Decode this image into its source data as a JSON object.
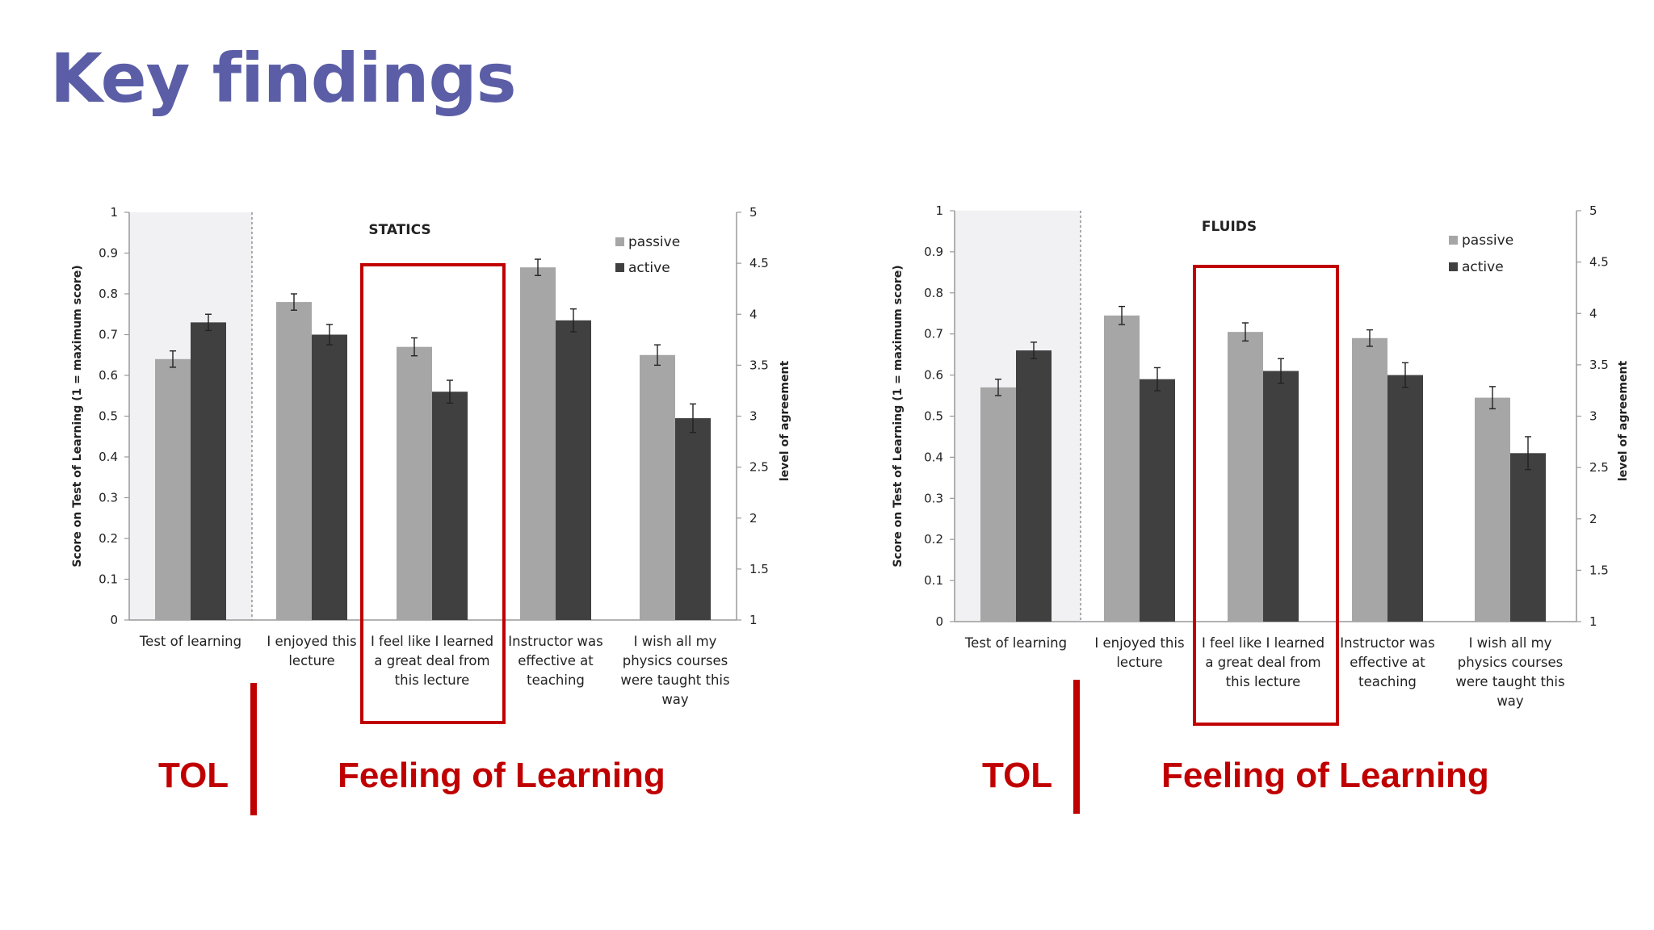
{
  "slide": {
    "title": "Key findings"
  },
  "captions": {
    "tol": "TOL",
    "feeling": "Feeling of Learning"
  },
  "colors": {
    "passive": "#a6a6a6",
    "active": "#404040",
    "highlight": "#c00000",
    "title": "#5b5ea6",
    "shade": "#f1f1f4"
  },
  "chart_data": [
    {
      "type": "bar",
      "title": "STATICS",
      "ylabel": "Score on Test of Learning  (1 = maximum score)",
      "y2label": "level of agreement",
      "ylim": [
        0,
        1
      ],
      "y2lim": [
        1,
        5
      ],
      "yticks": [
        "0",
        "0.1",
        "0.2",
        "0.3",
        "0.4",
        "0.5",
        "0.6",
        "0.7",
        "0.8",
        "0.9",
        "1"
      ],
      "y2ticks": [
        "1",
        "1.5",
        "2",
        "2.5",
        "3",
        "3.5",
        "4",
        "4.5",
        "5"
      ],
      "categories": [
        [
          "Test of learning"
        ],
        [
          "I enjoyed this",
          "lecture"
        ],
        [
          "I feel like I learned",
          "a great deal from",
          "this lecture"
        ],
        [
          "Instructor was",
          "effective at",
          "teaching"
        ],
        [
          "I wish all my",
          "physics courses",
          "were taught this",
          "way"
        ]
      ],
      "series": [
        {
          "name": "passive",
          "values": [
            0.64,
            0.78,
            0.67,
            0.865,
            0.65
          ]
        },
        {
          "name": "active",
          "values": [
            0.73,
            0.7,
            0.56,
            0.735,
            0.495
          ]
        }
      ],
      "errors": [
        [
          0.02,
          0.02,
          0.022,
          0.02,
          0.025
        ],
        [
          0.02,
          0.025,
          0.028,
          0.028,
          0.035
        ]
      ],
      "legend": "top-right",
      "highlight_category": 2
    },
    {
      "type": "bar",
      "title": "FLUIDS",
      "ylabel": "Score on Test of Learning  (1 = maximum score)",
      "y2label": "level of agreement",
      "ylim": [
        0,
        1
      ],
      "y2lim": [
        1,
        5
      ],
      "yticks": [
        "0",
        "0.1",
        "0.2",
        "0.3",
        "0.4",
        "0.5",
        "0.6",
        "0.7",
        "0.8",
        "0.9",
        "1"
      ],
      "y2ticks": [
        "1",
        "1.5",
        "2",
        "2.5",
        "3",
        "3.5",
        "4",
        "4.5",
        "5"
      ],
      "categories": [
        [
          "Test of learning"
        ],
        [
          "I enjoyed this",
          "lecture"
        ],
        [
          "I feel like I learned",
          "a great deal from",
          "this lecture"
        ],
        [
          "Instructor was",
          "effective at",
          "teaching"
        ],
        [
          "I wish all my",
          "physics courses",
          "were taught this",
          "way"
        ]
      ],
      "series": [
        {
          "name": "passive",
          "values": [
            0.57,
            0.745,
            0.705,
            0.69,
            0.545
          ]
        },
        {
          "name": "active",
          "values": [
            0.66,
            0.59,
            0.61,
            0.6,
            0.41
          ]
        }
      ],
      "errors": [
        [
          0.02,
          0.022,
          0.022,
          0.02,
          0.027
        ],
        [
          0.02,
          0.028,
          0.03,
          0.03,
          0.04
        ]
      ],
      "legend": "top-right",
      "highlight_category": 2
    }
  ]
}
